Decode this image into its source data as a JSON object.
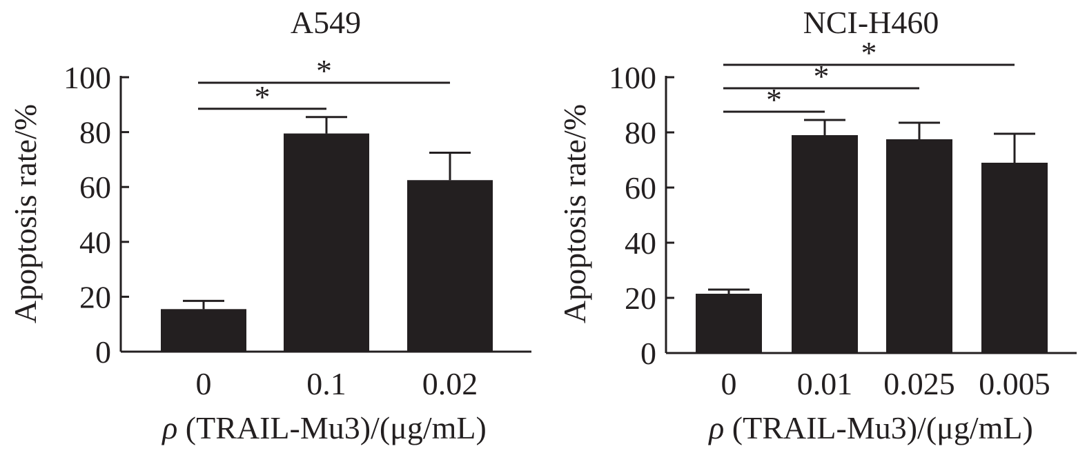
{
  "chart_data": [
    {
      "type": "bar",
      "title": "A549",
      "categories": [
        "0",
        "0.1",
        "0.02"
      ],
      "values": [
        15.5,
        79.5,
        62.5
      ],
      "errors": [
        3,
        6,
        10
      ],
      "ylabel": "Apoptosis rate/%",
      "xlabel": "ρ (TRAIL-Mu3)/(μg/mL)",
      "xlabel_symbol": "ρ",
      "xlabel_rest": " (TRAIL-Mu3)/(μg/mL)",
      "ylim": [
        0,
        100
      ],
      "yticks": [
        "0",
        "20",
        "40",
        "60",
        "80",
        "100"
      ],
      "bar_color": "#231f20",
      "significance": [
        {
          "from": 0,
          "to": 1,
          "label": "*",
          "y": 88.5
        },
        {
          "from": 0,
          "to": 2,
          "label": "*",
          "y": 98
        }
      ]
    },
    {
      "type": "bar",
      "title": "NCI-H460",
      "categories": [
        "0",
        "0.01",
        "0.025",
        "0.005"
      ],
      "values": [
        21.5,
        79,
        77.5,
        69
      ],
      "errors": [
        1.5,
        5.5,
        6,
        10.5
      ],
      "ylabel": "Apoptosis rate/%",
      "xlabel": "ρ (TRAIL-Mu3)/(μg/mL)",
      "xlabel_symbol": "ρ",
      "xlabel_rest": " (TRAIL-Mu3)/(μg/mL)",
      "ylim": [
        0,
        100
      ],
      "yticks": [
        "0",
        "20",
        "40",
        "60",
        "80",
        "100"
      ],
      "bar_color": "#231f20",
      "significance": [
        {
          "from": 0,
          "to": 1,
          "label": "*",
          "y": 87.5
        },
        {
          "from": 0,
          "to": 2,
          "label": "*",
          "y": 96
        },
        {
          "from": 0,
          "to": 3,
          "label": "*",
          "y": 104.5
        }
      ]
    }
  ]
}
